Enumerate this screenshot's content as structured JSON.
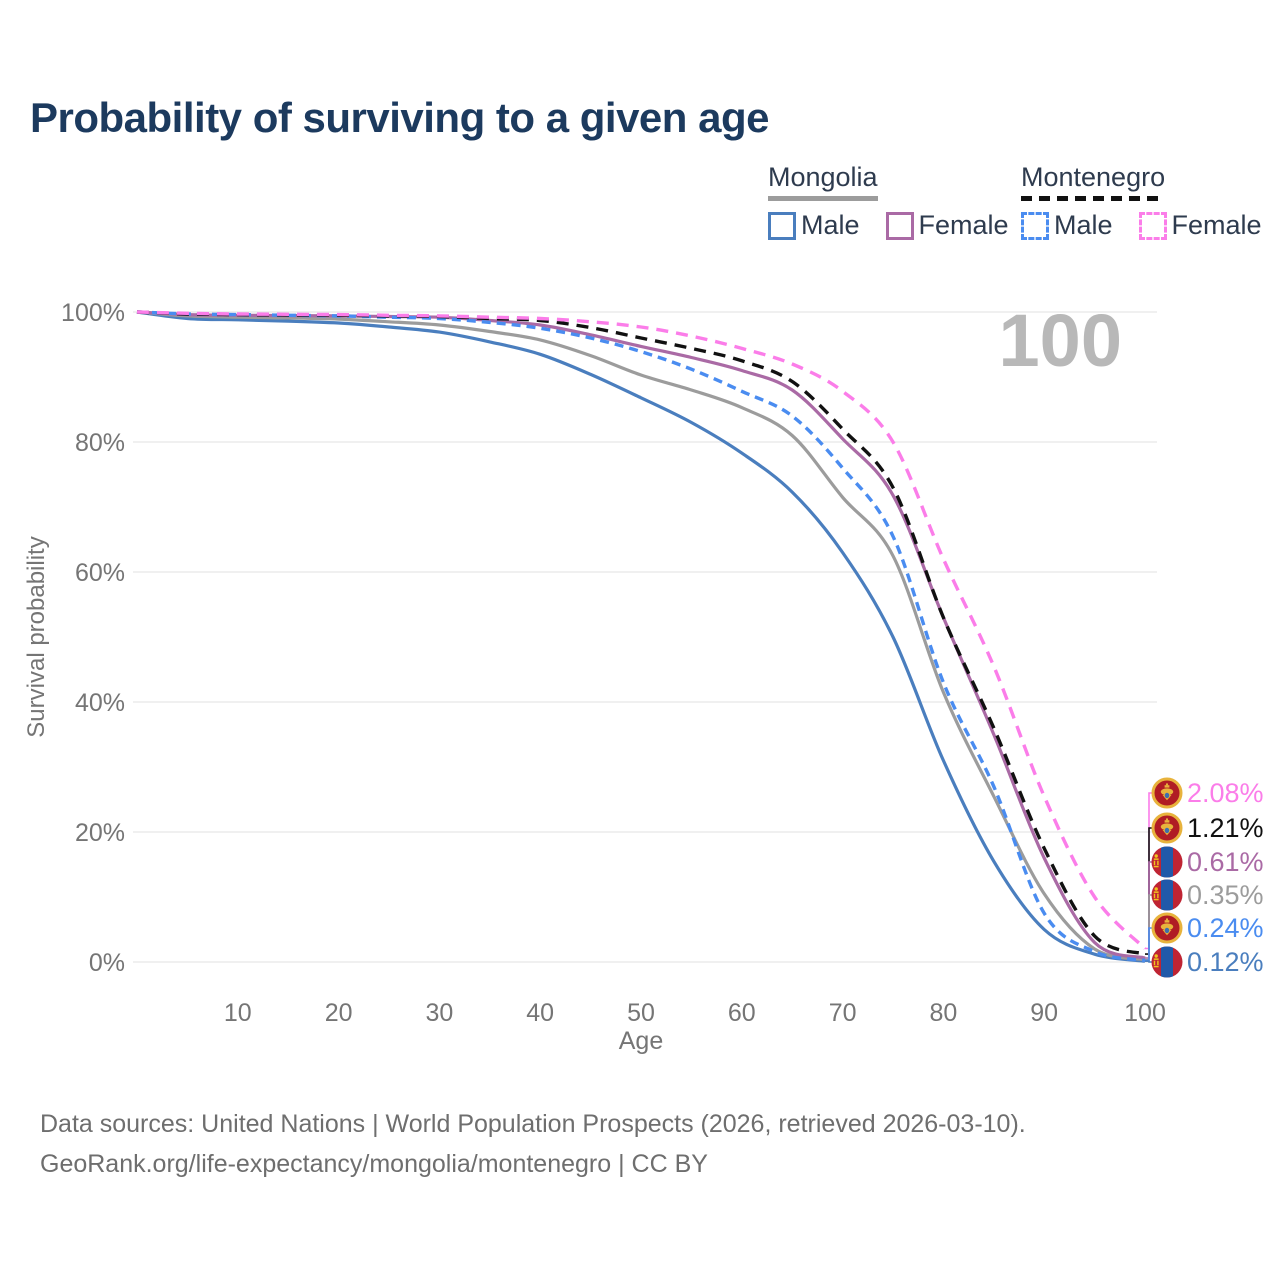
{
  "title": "Probability of surviving to a given age",
  "watermark_age": "100",
  "legend": {
    "groups": [
      {
        "country": "Mongolia",
        "line_style": "solid",
        "line_color": "#9c9c9c",
        "entries": [
          {
            "label": "Male",
            "color": "#4a7ebe",
            "dashed": false,
            "series": "mongolia-male"
          },
          {
            "label": "Female",
            "color": "#aa6aa5",
            "dashed": false,
            "series": "mongolia-female"
          }
        ]
      },
      {
        "country": "Montenegro",
        "line_style": "dashed",
        "line_color": "#111111",
        "entries": [
          {
            "label": "Male",
            "color": "#4a8cf0",
            "dashed": true,
            "series": "montenegro-male"
          },
          {
            "label": "Female",
            "color": "#fb7de9",
            "dashed": true,
            "series": "montenegro-female"
          }
        ]
      }
    ]
  },
  "chart_data": {
    "type": "line",
    "title": "Probability of surviving to a given age",
    "xlabel": "Age",
    "ylabel": "Survival probability",
    "xlim": [
      0,
      100
    ],
    "ylim": [
      0,
      100
    ],
    "grid": "horizontal",
    "x_ticks": [
      10,
      20,
      30,
      40,
      50,
      60,
      70,
      80,
      90,
      100
    ],
    "y_ticks": [
      {
        "value": 100,
        "label": "100%"
      },
      {
        "value": 80,
        "label": "80%"
      },
      {
        "value": 60,
        "label": "60%"
      },
      {
        "value": 40,
        "label": "40%"
      },
      {
        "value": 20,
        "label": "20%"
      },
      {
        "value": 0,
        "label": "0%"
      }
    ],
    "x": [
      0,
      5,
      10,
      15,
      20,
      25,
      30,
      35,
      40,
      45,
      50,
      55,
      60,
      65,
      70,
      75,
      80,
      85,
      90,
      95,
      100
    ],
    "series": [
      {
        "id": "mongolia-male",
        "name": "Mongolia Male",
        "country": "Mongolia",
        "sex": "Male",
        "color": "#4a7ebe",
        "dashed": false,
        "flag": "mongolia",
        "end_label": "0.12%",
        "values": [
          100,
          99.0,
          98.8,
          98.6,
          98.3,
          97.7,
          96.9,
          95.4,
          93.5,
          90.4,
          86.8,
          83.0,
          78.3,
          72.3,
          63.0,
          50.0,
          31.0,
          15.5,
          5.0,
          1.2,
          0.12
        ]
      },
      {
        "id": "mongolia-total",
        "name": "Mongolia",
        "country": "Mongolia",
        "sex": "Both",
        "color": "#9c9c9c",
        "dashed": false,
        "flag": "mongolia",
        "end_label": "0.35%",
        "values": [
          100,
          99.4,
          99.2,
          99.1,
          98.9,
          98.5,
          98.0,
          97.0,
          95.7,
          93.3,
          90.3,
          88.0,
          85.3,
          81.0,
          71.5,
          62.5,
          41.5,
          25.5,
          10.5,
          2.0,
          0.35
        ]
      },
      {
        "id": "mongolia-female",
        "name": "Mongolia Female",
        "country": "Mongolia",
        "sex": "Female",
        "color": "#aa6aa5",
        "dashed": false,
        "flag": "mongolia",
        "end_label": "0.61%",
        "values": [
          100,
          99.6,
          99.5,
          99.45,
          99.4,
          99.3,
          99.2,
          98.7,
          98.0,
          96.5,
          94.7,
          93.0,
          91.0,
          88.0,
          80.5,
          71.8,
          53.0,
          35.0,
          16.0,
          3.0,
          0.61
        ]
      },
      {
        "id": "montenegro-male",
        "name": "Montenegro Male",
        "country": "Montenegro",
        "sex": "Male",
        "color": "#4a8cf0",
        "dashed": true,
        "flag": "montenegro",
        "end_label": "0.24%",
        "values": [
          100,
          99.7,
          99.6,
          99.5,
          99.4,
          99.2,
          99.0,
          98.4,
          97.5,
          96.0,
          93.9,
          91.2,
          87.8,
          84.0,
          76.0,
          65.5,
          43.0,
          27.0,
          7.5,
          1.6,
          0.24
        ]
      },
      {
        "id": "montenegro-total",
        "name": "Montenegro",
        "country": "Montenegro",
        "sex": "Both",
        "color": "#111111",
        "dashed": true,
        "flag": "montenegro",
        "end_label": "1.21%",
        "values": [
          100,
          99.7,
          99.6,
          99.55,
          99.5,
          99.4,
          99.3,
          99.0,
          98.7,
          97.6,
          96.0,
          94.4,
          92.5,
          89.3,
          82.0,
          73.0,
          53.0,
          36.0,
          17.5,
          4.0,
          1.21
        ]
      },
      {
        "id": "montenegro-female",
        "name": "Montenegro Female",
        "country": "Montenegro",
        "sex": "Female",
        "color": "#fb7de9",
        "dashed": true,
        "flag": "montenegro",
        "end_label": "2.08%",
        "values": [
          100,
          99.8,
          99.7,
          99.65,
          99.6,
          99.5,
          99.4,
          99.2,
          99.0,
          98.5,
          97.7,
          96.3,
          94.4,
          92.0,
          87.8,
          80.0,
          62.0,
          45.5,
          25.5,
          10.0,
          2.08
        ]
      }
    ]
  },
  "flags": {
    "mongolia": {
      "red": "#bf2433",
      "blue": "#2059a9",
      "gold": "#f2c51d"
    },
    "montenegro": {
      "red": "#b01c24",
      "gold": "#e8b33c",
      "shield": "#3f6fae"
    }
  },
  "footer": {
    "line1": "Data sources: United Nations | World Population Prospects (2026, retrieved 2026-03-10).",
    "line2": "GeoRank.org/life-expectancy/mongolia/montenegro | CC BY"
  }
}
